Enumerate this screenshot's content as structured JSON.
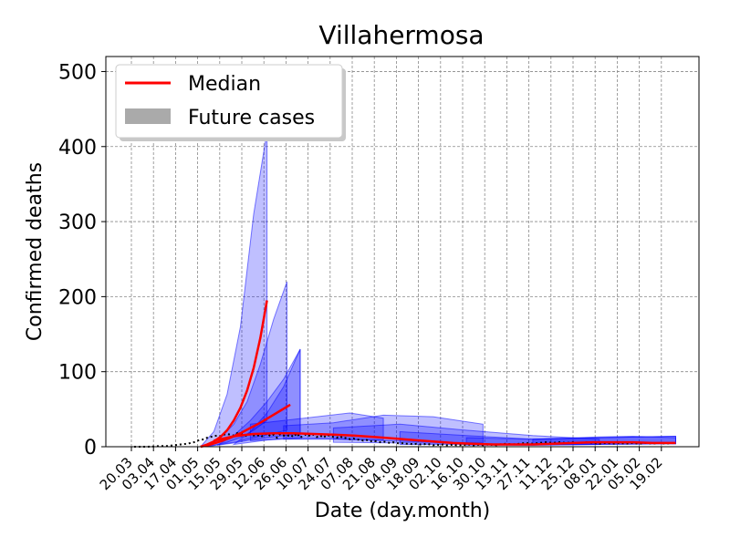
{
  "chart_data": {
    "type": "line",
    "title": "Villahermosa",
    "xlabel": "Date (day.month)",
    "ylabel": "Confirmed deaths",
    "ylim": [
      0,
      520
    ],
    "yticks": [
      0,
      100,
      200,
      300,
      400,
      500
    ],
    "x_tick_labels": [
      "20.03",
      "03.04",
      "17.04",
      "01.05",
      "15.05",
      "29.05",
      "12.06",
      "26.06",
      "10.07",
      "24.07",
      "07.08",
      "21.08",
      "04.09",
      "18.09",
      "02.10",
      "16.10",
      "30.10",
      "13.11",
      "27.11",
      "11.12",
      "25.12",
      "08.01",
      "22.01",
      "05.02",
      "19.02"
    ],
    "grid": true,
    "legend_position": "top-left",
    "legend": [
      {
        "label": "Median",
        "kind": "line",
        "color": "#ff0000"
      },
      {
        "label": "Future cases",
        "kind": "patch",
        "color": "#aaaaaa"
      }
    ],
    "colors": {
      "band": "#0000ff",
      "median": "#ff0000",
      "observed": "#000000"
    },
    "series": [
      {
        "x": [
          70,
          74,
          78,
          82,
          86,
          90,
          94,
          98,
          102,
          106,
          110,
          114,
          118,
          122,
          126,
          130,
          134,
          138,
          142,
          146,
          150,
          154,
          158,
          162,
          166,
          170,
          174,
          178,
          182,
          186,
          190,
          194,
          198,
          202,
          206,
          210,
          214,
          218,
          222,
          226,
          230,
          234,
          238,
          242,
          246,
          250,
          254,
          258,
          262,
          266,
          270,
          274,
          278,
          282,
          286,
          290,
          294,
          298,
          302,
          306,
          310,
          314,
          318,
          322,
          326,
          330,
          334,
          338,
          342,
          346,
          350,
          354,
          358,
          362,
          366,
          370,
          374,
          378,
          382,
          386,
          390,
          394,
          398,
          402,
          406
        ],
        "y": [
          0,
          0,
          0,
          0,
          0,
          0,
          0,
          0,
          0,
          0,
          0,
          0,
          0,
          0,
          0,
          0,
          0,
          0,
          0,
          0,
          0,
          0,
          0,
          0,
          0,
          0,
          0,
          0,
          0,
          0,
          0,
          0,
          0,
          0,
          0,
          0,
          0,
          0,
          0,
          0,
          0,
          0,
          0,
          0,
          0,
          0,
          0,
          0,
          0,
          0,
          0,
          0,
          0,
          0,
          0,
          0,
          0,
          0,
          0,
          0,
          0,
          0,
          0,
          0,
          0,
          0,
          0,
          0,
          0,
          0,
          0,
          0,
          0,
          0,
          0,
          0,
          0,
          0,
          0,
          0,
          0,
          0,
          0,
          0,
          0
        ]
      }
    ],
    "observed": {
      "x": [
        80,
        88,
        96,
        100,
        104,
        108,
        112,
        116,
        118,
        120,
        122,
        124,
        126,
        128,
        130,
        132,
        134,
        136,
        138,
        140,
        142,
        144,
        146,
        148,
        150,
        152,
        154,
        156,
        158,
        160,
        162,
        164,
        166,
        168,
        170,
        172,
        174,
        176,
        178,
        180,
        182,
        184,
        186,
        188,
        190,
        192,
        194,
        196,
        198,
        200,
        202,
        204,
        206,
        208,
        210,
        212,
        214,
        216,
        218,
        220,
        222,
        224,
        226,
        228,
        230,
        232,
        234,
        236,
        238,
        240,
        242,
        244,
        246,
        248,
        250,
        252,
        254,
        256,
        258,
        260,
        262,
        264,
        266,
        268,
        270,
        272,
        274,
        276,
        278,
        280,
        282,
        284,
        286,
        288,
        290,
        292,
        294,
        296,
        298,
        300,
        304,
        308,
        312,
        316,
        320,
        324,
        328,
        332,
        336,
        340,
        344,
        348,
        352,
        356,
        360,
        364,
        368,
        372,
        376,
        380,
        384,
        388,
        392,
        396,
        400,
        404,
        406
      ],
      "y": [
        0,
        0,
        1,
        1,
        2,
        3,
        4,
        6,
        8,
        9,
        10,
        12,
        13,
        14,
        15,
        14,
        16,
        17,
        16,
        15,
        18,
        17,
        16,
        14,
        17,
        15,
        16,
        13,
        15,
        18,
        14,
        16,
        12,
        17,
        15,
        14,
        16,
        13,
        18,
        12,
        15,
        17,
        14,
        16,
        13,
        15,
        12,
        16,
        14,
        13,
        12,
        14,
        11,
        12,
        10,
        11,
        9,
        10,
        8,
        9,
        7,
        8,
        7,
        6,
        7,
        6,
        5,
        6,
        5,
        4,
        5,
        4,
        4,
        3,
        4,
        3,
        3,
        4,
        3,
        2,
        3,
        2,
        3,
        2,
        2,
        3,
        2,
        2,
        3,
        2,
        3,
        2,
        2,
        3,
        2,
        3,
        2,
        3,
        2,
        3,
        4,
        3,
        4,
        5,
        4,
        5,
        6,
        5,
        6,
        5,
        6,
        5,
        6,
        5,
        4,
        5,
        4,
        5,
        4,
        5,
        4,
        5,
        4,
        5,
        4,
        5,
        4
      ]
    },
    "medians": [
      {
        "x": [
          120,
          124,
          128,
          132,
          136,
          140,
          144,
          148,
          152,
          156,
          160
        ],
        "y": [
          0,
          3,
          7,
          13,
          22,
          35,
          52,
          75,
          105,
          145,
          195
        ]
      },
      {
        "x": [
          120,
          126,
          132,
          138,
          144,
          150,
          156,
          162,
          168,
          174
        ],
        "y": [
          0,
          3,
          7,
          12,
          18,
          25,
          32,
          40,
          48,
          56
        ]
      },
      {
        "x": [
          128,
          140,
          152,
          164,
          176,
          188,
          200,
          212,
          224,
          236,
          248,
          260,
          272,
          284,
          296,
          308,
          320,
          332,
          344,
          356,
          368,
          380,
          392,
          406
        ],
        "y": [
          8,
          14,
          17,
          18,
          18,
          17,
          16,
          15,
          13,
          11,
          9,
          7,
          5,
          4,
          3,
          3,
          3,
          4,
          5,
          6,
          6,
          6,
          5,
          5
        ]
      }
    ],
    "bands": [
      {
        "x": [
          120,
          128,
          136,
          144,
          152,
          160
        ],
        "lower": [
          0,
          2,
          6,
          12,
          22,
          35
        ],
        "upper": [
          0,
          20,
          70,
          160,
          310,
          420
        ]
      },
      {
        "x": [
          124,
          132,
          140,
          148,
          156,
          164,
          172
        ],
        "lower": [
          0,
          3,
          6,
          10,
          14,
          18,
          22
        ],
        "upper": [
          0,
          12,
          30,
          60,
          110,
          170,
          220
        ]
      },
      {
        "x": [
          130,
          140,
          150,
          160,
          170,
          180
        ],
        "lower": [
          2,
          5,
          9,
          12,
          15,
          17
        ],
        "upper": [
          2,
          15,
          35,
          60,
          90,
          130
        ]
      },
      {
        "x": [
          140,
          150,
          160,
          170,
          180
        ],
        "lower": [
          3,
          6,
          9,
          11,
          12
        ],
        "upper": [
          3,
          20,
          45,
          80,
          130
        ]
      },
      {
        "x": [
          150,
          170,
          190,
          210,
          230
        ],
        "lower": [
          8,
          10,
          11,
          10,
          9
        ],
        "upper": [
          30,
          35,
          40,
          45,
          38
        ]
      },
      {
        "x": [
          170,
          200,
          230,
          260,
          290
        ],
        "lower": [
          10,
          10,
          8,
          6,
          5
        ],
        "upper": [
          28,
          32,
          42,
          40,
          30
        ]
      },
      {
        "x": [
          200,
          240,
          280,
          320,
          360
        ],
        "lower": [
          6,
          5,
          4,
          3,
          3
        ],
        "upper": [
          25,
          30,
          22,
          15,
          10
        ]
      },
      {
        "x": [
          240,
          280,
          320,
          360,
          406
        ],
        "lower": [
          3,
          3,
          2,
          3,
          4
        ],
        "upper": [
          20,
          15,
          10,
          12,
          14
        ]
      },
      {
        "x": [
          280,
          320,
          360,
          406
        ],
        "lower": [
          2,
          2,
          3,
          4
        ],
        "upper": [
          12,
          10,
          12,
          14
        ]
      },
      {
        "x": [
          320,
          360,
          380,
          406
        ],
        "lower": [
          3,
          4,
          5,
          4
        ],
        "upper": [
          10,
          13,
          14,
          12
        ]
      }
    ]
  }
}
